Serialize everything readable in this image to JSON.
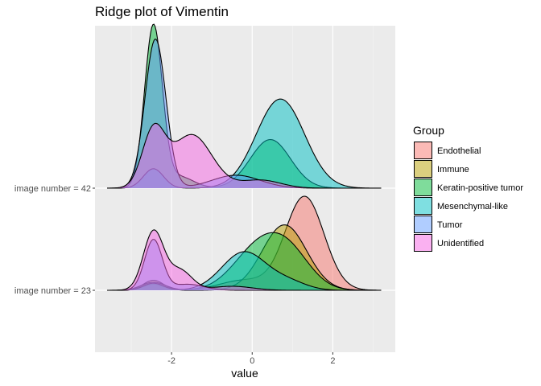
{
  "chart_data": {
    "type": "area",
    "subtype": "ridgeline-density",
    "title": "Ridge plot of Vimentin",
    "xlabel": "value",
    "ylabel": "",
    "xlim": [
      -3.9,
      3.55
    ],
    "x_ticks": [
      -2,
      0,
      2
    ],
    "x_tick_labels": [
      "-2",
      "0",
      "2"
    ],
    "grid": true,
    "legend_title": "Group",
    "legend_position": "right",
    "rows": [
      "image number = 23",
      "image number = 42"
    ],
    "series": [
      {
        "name": "Endothelial",
        "color": "#F8766D",
        "rows": {
          "image number = 42": null,
          "image number = 23": {
            "range": [
              -3.6,
              3.2
            ],
            "components": [
              {
                "mean": -2.45,
                "sd": 0.25,
                "w": 0.06
              },
              {
                "mean": -0.2,
                "sd": 0.6,
                "w": 0.1
              },
              {
                "mean": 1.3,
                "sd": 0.48,
                "w": 0.93
              }
            ]
          }
        }
      },
      {
        "name": "Immune",
        "color": "#B79F00",
        "rows": {
          "image number = 42": null,
          "image number = 23": {
            "range": [
              -3.6,
              3.2
            ],
            "components": [
              {
                "mean": -2.45,
                "sd": 0.25,
                "w": 0.1
              },
              {
                "mean": 0.8,
                "sd": 0.55,
                "w": 0.65
              }
            ]
          }
        }
      },
      {
        "name": "Keratin-positive tumor",
        "color": "#00BA38",
        "rows": {
          "image number = 42": {
            "range": [
              -3.6,
              3.2
            ],
            "components": [
              {
                "mean": -2.45,
                "sd": 0.22,
                "w": 1.0
              },
              {
                "mean": -1.8,
                "sd": 0.35,
                "w": 0.07
              },
              {
                "mean": 0.45,
                "sd": 0.5,
                "w": 0.3
              }
            ]
          },
          "image number = 23": {
            "range": [
              -3.6,
              3.2
            ],
            "components": [
              {
                "mean": -2.45,
                "sd": 0.3,
                "w": 0.08
              },
              {
                "mean": 0.1,
                "sd": 0.6,
                "w": 0.38
              },
              {
                "mean": 0.9,
                "sd": 0.55,
                "w": 0.35
              }
            ]
          }
        }
      },
      {
        "name": "Mesenchymal-like",
        "color": "#00BFC4",
        "rows": {
          "image number = 42": {
            "range": [
              -3.6,
              3.2
            ],
            "components": [
              {
                "mean": -2.45,
                "sd": 0.25,
                "w": 0.12
              },
              {
                "mean": 0.7,
                "sd": 0.6,
                "w": 0.55
              }
            ]
          },
          "image number = 23": {
            "range": [
              -3.6,
              3.2
            ],
            "components": [
              {
                "mean": -2.45,
                "sd": 0.25,
                "w": 0.07
              },
              {
                "mean": -0.2,
                "sd": 0.55,
                "w": 0.38
              },
              {
                "mean": 0.9,
                "sd": 0.45,
                "w": 0.08
              }
            ]
          }
        }
      },
      {
        "name": "Tumor",
        "color": "#619CFF",
        "rows": {
          "image number = 42": {
            "range": [
              -3.6,
              3.2
            ],
            "components": [
              {
                "mean": -2.4,
                "sd": 0.26,
                "w": 0.92
              },
              {
                "mean": -0.4,
                "sd": 0.6,
                "w": 0.08
              }
            ]
          },
          "image number = 23": {
            "range": [
              -3.6,
              3.2
            ],
            "components": [
              {
                "mean": -2.45,
                "sd": 0.22,
                "w": 0.5
              },
              {
                "mean": -1.6,
                "sd": 0.4,
                "w": 0.06
              }
            ]
          }
        }
      },
      {
        "name": "Unidentified",
        "color": "#F564E3",
        "rows": {
          "image number = 42": {
            "range": [
              -3.6,
              3.2
            ],
            "components": [
              {
                "mean": -2.45,
                "sd": 0.28,
                "w": 0.34
              },
              {
                "mean": -1.5,
                "sd": 0.5,
                "w": 0.33
              },
              {
                "mean": 0.2,
                "sd": 0.5,
                "w": 0.05
              }
            ]
          },
          "image number = 23": {
            "range": [
              -3.6,
              3.2
            ],
            "components": [
              {
                "mean": -2.45,
                "sd": 0.25,
                "w": 0.58
              },
              {
                "mean": -1.8,
                "sd": 0.3,
                "w": 0.2
              },
              {
                "mean": -0.5,
                "sd": 0.5,
                "w": 0.04
              }
            ]
          }
        }
      }
    ]
  }
}
